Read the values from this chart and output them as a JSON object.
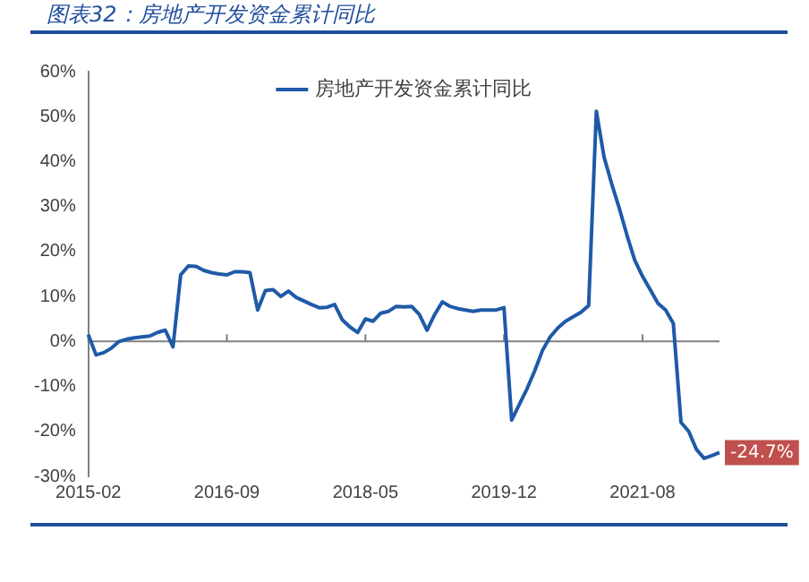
{
  "chart_data": {
    "type": "line",
    "title": "图表32：房地产开发资金累计同比",
    "categories": [
      "2015-02",
      null,
      null,
      null,
      null,
      null,
      null,
      null,
      null,
      null,
      null,
      null,
      null,
      null,
      null,
      null,
      null,
      null,
      "2016-09",
      null,
      null,
      null,
      null,
      null,
      null,
      null,
      null,
      null,
      null,
      null,
      null,
      null,
      null,
      null,
      null,
      null,
      "2018-05",
      null,
      null,
      null,
      null,
      null,
      null,
      null,
      null,
      null,
      null,
      null,
      null,
      null,
      null,
      null,
      null,
      null,
      "2019-12",
      null,
      null,
      null,
      null,
      null,
      null,
      null,
      null,
      null,
      null,
      null,
      null,
      null,
      null,
      null,
      null,
      null,
      "2021-08",
      null,
      null,
      null,
      null,
      null,
      null,
      null,
      null,
      null,
      null
    ],
    "series": [
      {
        "name": "房地产开发资金累计同比",
        "color": "#1f5aa8",
        "values": [
          1.5,
          -3.0,
          -2.5,
          -1.5,
          0,
          0.5,
          0.8,
          1.0,
          1.2,
          2.0,
          2.5,
          -1.2,
          14.8,
          16.8,
          16.7,
          15.8,
          15.3,
          15.0,
          14.8,
          15.5,
          15.5,
          15.3,
          7.0,
          11.3,
          11.5,
          10.0,
          11.2,
          9.8,
          9.0,
          8.2,
          7.5,
          7.6,
          8.2,
          4.8,
          3.2,
          2.0,
          5.0,
          4.5,
          6.3,
          6.7,
          7.8,
          7.7,
          7.8,
          6.0,
          2.5,
          6.0,
          8.8,
          7.8,
          7.3,
          7.0,
          6.7,
          7.0,
          7.0,
          7.0,
          7.5,
          -17.5,
          -14.0,
          -10.5,
          -6.5,
          -2.0,
          1.0,
          3.0,
          4.5,
          5.5,
          6.5,
          8.0,
          51.2,
          41.0,
          35.0,
          29.5,
          23.5,
          18.0,
          14.5,
          11.5,
          8.5,
          7.0,
          4.0,
          -18.0,
          -20.0,
          -24.0,
          -26.0,
          -25.4,
          -24.7
        ],
        "value_labels": [
          null,
          null,
          null,
          null,
          null,
          null,
          null,
          null,
          null,
          null,
          null,
          null,
          null,
          null,
          null,
          null,
          null,
          null,
          null,
          null,
          null,
          null,
          null,
          null,
          null,
          null,
          null,
          null,
          null,
          null,
          null,
          null,
          null,
          null,
          null,
          null,
          null,
          null,
          null,
          null,
          null,
          null,
          null,
          null,
          null,
          null,
          null,
          null,
          null,
          null,
          null,
          null,
          null,
          null,
          null,
          null,
          null,
          null,
          null,
          null,
          null,
          null,
          null,
          null,
          null,
          null,
          null,
          null,
          null,
          null,
          null,
          null,
          null,
          null,
          null,
          null,
          null,
          null,
          null,
          null,
          null,
          null,
          "-24.7%"
        ]
      }
    ],
    "ylim": [
      -30,
      60
    ],
    "yticks": [
      {
        "value": -30,
        "label": "-30%"
      },
      {
        "value": -20,
        "label": "-20%"
      },
      {
        "value": -10,
        "label": "-10%"
      },
      {
        "value": 0,
        "label": "0%"
      },
      {
        "value": 10,
        "label": "10%"
      },
      {
        "value": 20,
        "label": "20%"
      },
      {
        "value": 30,
        "label": "30%"
      },
      {
        "value": 40,
        "label": "40%"
      },
      {
        "value": 50,
        "label": "50%"
      },
      {
        "value": 60,
        "label": "60%"
      }
    ],
    "ref_lines": [
      {
        "axis": "y",
        "value": 0,
        "color": "#808080"
      }
    ],
    "grid": false,
    "legend": "top",
    "marker": "none",
    "line_style": "solid"
  }
}
